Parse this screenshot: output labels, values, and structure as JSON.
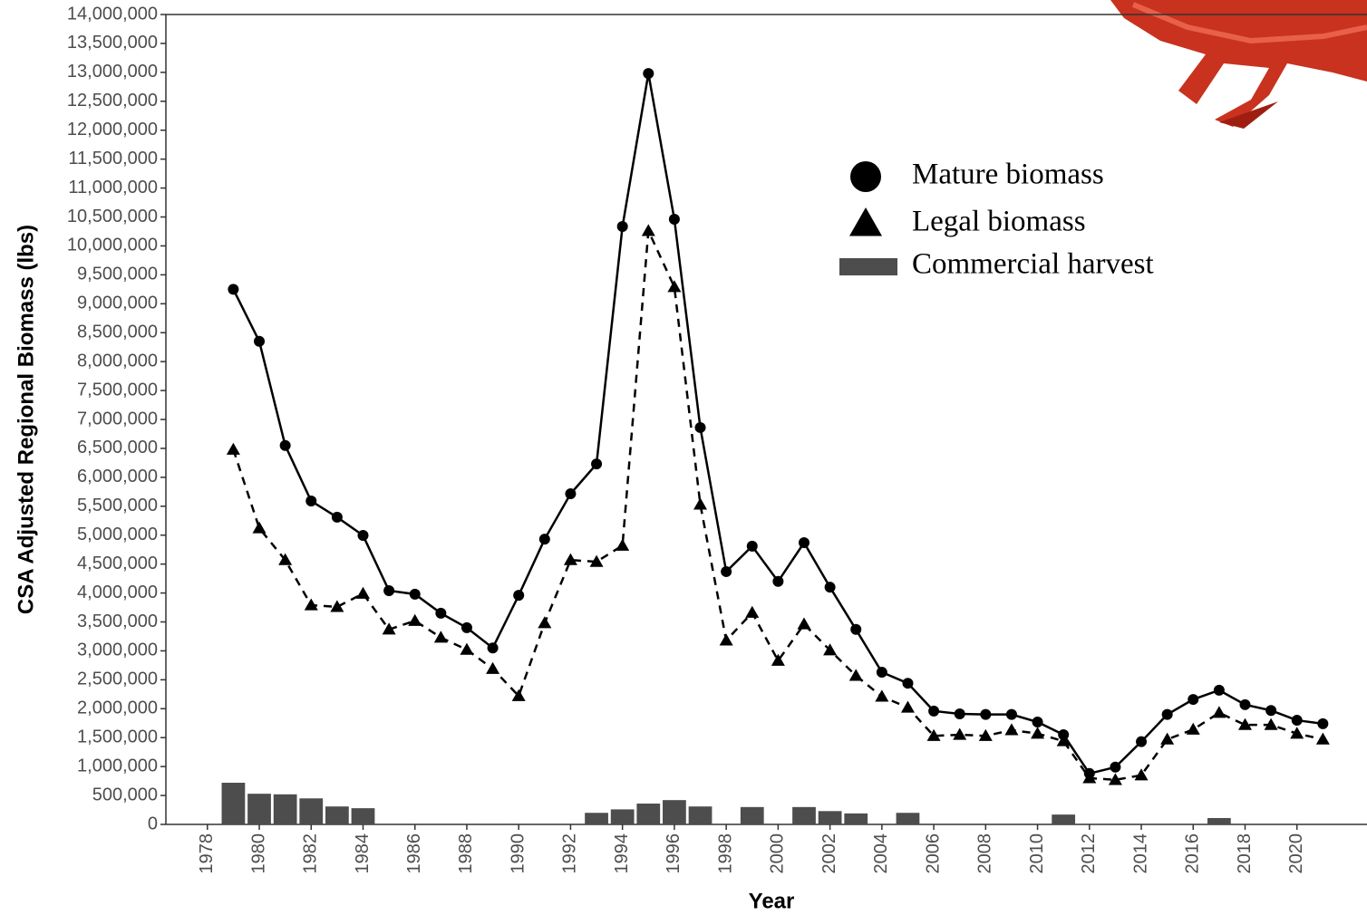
{
  "chart_data": {
    "type": "line",
    "ylabel": "CSA Adjusted Regional Biomass (lbs)",
    "xlabel": "Year",
    "x": [
      1979,
      1980,
      1981,
      1982,
      1983,
      1984,
      1985,
      1986,
      1987,
      1988,
      1989,
      1990,
      1991,
      1992,
      1993,
      1994,
      1995,
      1996,
      1997,
      1998,
      1999,
      2000,
      2001,
      2002,
      2003,
      2004,
      2005,
      2006,
      2007,
      2008,
      2009,
      2010,
      2011,
      2012,
      2013,
      2014,
      2015,
      2016,
      2017,
      2018,
      2019,
      2020,
      2021
    ],
    "series": [
      {
        "name": "Commercial harvest",
        "kind": "bar",
        "color": "#4d4d4d",
        "values": [
          720000,
          530000,
          520000,
          450000,
          310000,
          280000,
          0,
          0,
          0,
          0,
          10000,
          0,
          0,
          0,
          200000,
          260000,
          360000,
          420000,
          310000,
          0,
          300000,
          0,
          300000,
          230000,
          190000,
          0,
          200000,
          0,
          0,
          0,
          0,
          0,
          170000,
          0,
          0,
          0,
          0,
          0,
          110000,
          0,
          0,
          0,
          0
        ]
      },
      {
        "name": "Legal biomass",
        "kind": "line",
        "marker": "triangle",
        "dash": true,
        "color": "#000000",
        "values": [
          6480000,
          5120000,
          4570000,
          3790000,
          3760000,
          3990000,
          3370000,
          3520000,
          3230000,
          3020000,
          2690000,
          2220000,
          3480000,
          4570000,
          4540000,
          4820000,
          10260000,
          9290000,
          5530000,
          3180000,
          3660000,
          2830000,
          3460000,
          3010000,
          2570000,
          2210000,
          2020000,
          1530000,
          1550000,
          1530000,
          1630000,
          1570000,
          1440000,
          800000,
          770000,
          850000,
          1470000,
          1640000,
          1930000,
          1720000,
          1720000,
          1570000,
          1470000
        ]
      },
      {
        "name": "Mature biomass",
        "kind": "line",
        "marker": "circle",
        "dash": false,
        "color": "#000000",
        "values": [
          9250000,
          8350000,
          6550000,
          5590000,
          5310000,
          4995000,
          4040000,
          3980000,
          3650000,
          3400000,
          3050000,
          3960000,
          4930000,
          5715000,
          6230000,
          10335000,
          12980000,
          10460000,
          6860000,
          4370000,
          4810000,
          4200000,
          4870000,
          4100000,
          3370000,
          2630000,
          2440000,
          1960000,
          1910000,
          1900000,
          1900000,
          1770000,
          1550000,
          880000,
          990000,
          1430000,
          1900000,
          2160000,
          2320000,
          2070000,
          1970000,
          1800000,
          1740000
        ]
      }
    ],
    "legend_order": [
      2,
      1,
      0
    ],
    "xlim": [
      1976.4,
      2022.7
    ],
    "xticks": [
      1978,
      1980,
      1982,
      1984,
      1986,
      1988,
      1990,
      1992,
      1994,
      1996,
      1998,
      2000,
      2002,
      2004,
      2006,
      2008,
      2010,
      2012,
      2014,
      2016,
      2018,
      2020
    ],
    "ylim": [
      0,
      14000000
    ],
    "yticks": [
      0,
      {
        "value": 500000,
        "label": "500,000"
      },
      {
        "value": 1000000,
        "label": "1,000,000"
      },
      {
        "value": 1500000,
        "label": "1,500,000"
      },
      {
        "value": 2000000,
        "label": "2,000,000"
      },
      {
        "value": 2500000,
        "label": "2,500,000"
      },
      {
        "value": 3000000,
        "label": "3,000,000"
      },
      {
        "value": 3500000,
        "label": "3,500,000"
      },
      {
        "value": 4000000,
        "label": "4,000,000"
      },
      {
        "value": 4500000,
        "label": "4,500,000"
      },
      {
        "value": 5000000,
        "label": "5,000,000"
      },
      {
        "value": 5500000,
        "label": "5,500,000"
      },
      {
        "value": 6000000,
        "label": "6,000,000"
      },
      {
        "value": 6500000,
        "label": "6,500,000"
      },
      {
        "value": 7000000,
        "label": "7,000,000"
      },
      {
        "value": 7500000,
        "label": "7,500,000"
      },
      {
        "value": 8000000,
        "label": "8,000,000"
      },
      {
        "value": 8500000,
        "label": "8,500,000"
      },
      {
        "value": 9000000,
        "label": "9,000,000"
      },
      {
        "value": 9500000,
        "label": "9,500,000"
      },
      {
        "value": 10000000,
        "label": "10,000,000"
      },
      {
        "value": 10500000,
        "label": "10,500,000"
      },
      {
        "value": 11000000,
        "label": "11,000,000"
      },
      {
        "value": 11500000,
        "label": "11,500,000"
      },
      {
        "value": 12000000,
        "label": "12,000,000"
      },
      {
        "value": 12500000,
        "label": "12,500,000"
      },
      {
        "value": 13000000,
        "label": "13,000,000"
      },
      {
        "value": 13500000,
        "label": "13,500,000"
      },
      {
        "value": 14000000,
        "label": "14,000,000"
      }
    ],
    "grid": false
  }
}
